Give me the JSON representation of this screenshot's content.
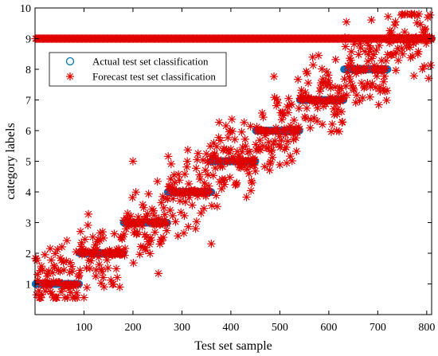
{
  "chart_data": {
    "type": "scatter",
    "xlabel": "Test set sample",
    "ylabel": "category labels",
    "xlim": [
      0,
      810
    ],
    "ylim": [
      0,
      10
    ],
    "x_ticks": [
      100,
      200,
      300,
      400,
      500,
      600,
      700,
      800
    ],
    "y_ticks": [
      1,
      2,
      3,
      4,
      5,
      6,
      7,
      8,
      9,
      10
    ],
    "grid": false,
    "legend_position": "upper-left",
    "n_samples": 810,
    "series": [
      {
        "name": "Actual test set classification",
        "marker": "circle",
        "color": "#0072BD",
        "segments": [
          {
            "class": 1,
            "x_start": 1,
            "x_end": 90
          },
          {
            "class": 2,
            "x_start": 91,
            "x_end": 180
          },
          {
            "class": 3,
            "x_start": 181,
            "x_end": 270
          },
          {
            "class": 4,
            "x_start": 271,
            "x_end": 360
          },
          {
            "class": 5,
            "x_start": 361,
            "x_end": 450
          },
          {
            "class": 6,
            "x_start": 451,
            "x_end": 540
          },
          {
            "class": 7,
            "x_start": 541,
            "x_end": 630
          },
          {
            "class": 8,
            "x_start": 631,
            "x_end": 720
          },
          {
            "class": 9,
            "x_start": 721,
            "x_end": 810
          }
        ]
      },
      {
        "name": "Forecast test set classification",
        "marker": "asterisk",
        "color": "#E00000",
        "plateau_value": 9,
        "plateau_x_range": [
          1,
          810
        ],
        "approx_forecast_spread": 0.9
      }
    ]
  }
}
